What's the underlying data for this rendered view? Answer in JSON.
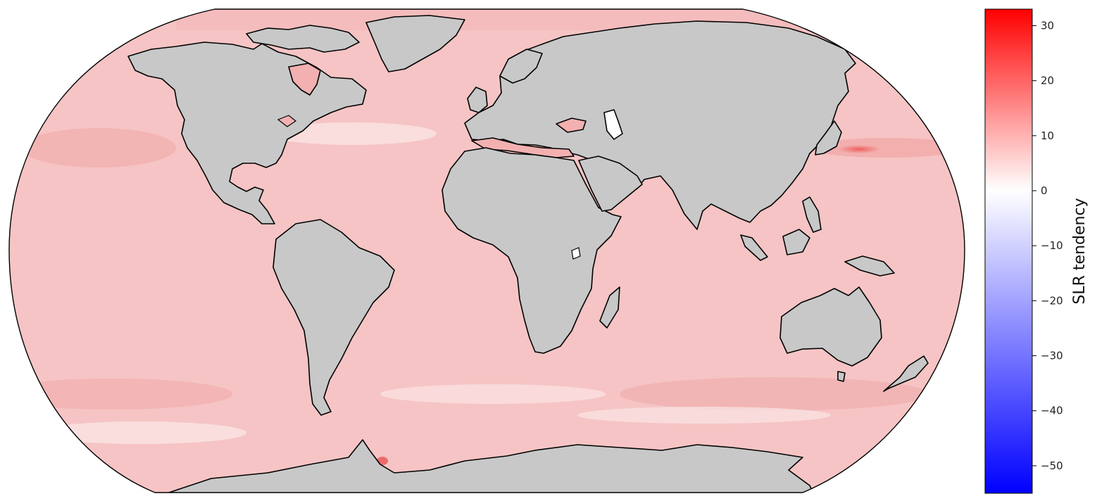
{
  "map": {
    "projection": "robinson",
    "ocean_color": "#f6c4c4",
    "land_color": "#c8c8c8",
    "coastline_color": "#000000",
    "continents": [
      "North America",
      "South America",
      "Europe",
      "Asia",
      "Africa",
      "Australia",
      "Antarctica",
      "Greenland"
    ]
  },
  "colorbar": {
    "label": "SLR tendency",
    "colormap": "bwr",
    "range": [
      -55,
      33
    ],
    "ticks": [
      {
        "value": 30,
        "label": "30"
      },
      {
        "value": 20,
        "label": "20"
      },
      {
        "value": 10,
        "label": "10"
      },
      {
        "value": 0,
        "label": "0"
      },
      {
        "value": -10,
        "label": "−10"
      },
      {
        "value": -20,
        "label": "−20"
      },
      {
        "value": -30,
        "label": "−30"
      },
      {
        "value": -40,
        "label": "−40"
      },
      {
        "value": -50,
        "label": "−50"
      }
    ],
    "colors": {
      "low": "#0000ff",
      "mid": "#ffffff",
      "high": "#ff0000"
    }
  }
}
